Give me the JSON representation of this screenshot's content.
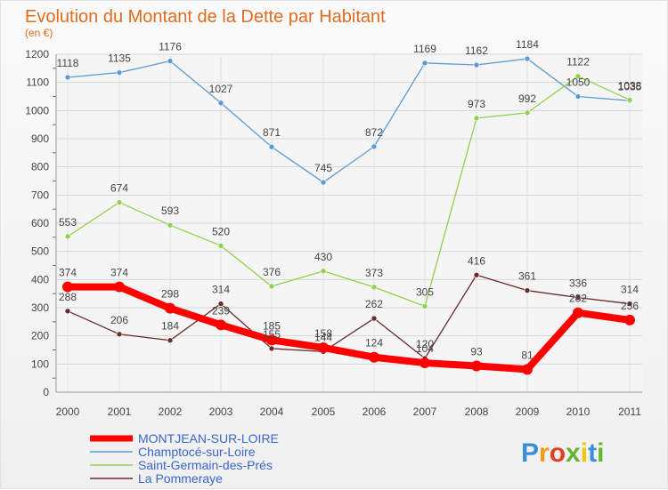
{
  "chart_data": {
    "type": "line",
    "title": "Evolution du Montant de la Dette par Habitant",
    "subtitle": "(en €)",
    "xlabel": "",
    "ylabel": "",
    "x": [
      "2000",
      "2001",
      "2002",
      "2003",
      "2004",
      "2005",
      "2006",
      "2007",
      "2008",
      "2009",
      "2010",
      "2011"
    ],
    "ylim": [
      0,
      1200
    ],
    "yticks": [
      0,
      100,
      200,
      300,
      400,
      500,
      600,
      700,
      800,
      900,
      1000,
      1100,
      1200
    ],
    "grid": "horizontal",
    "legend_position": "bottom-left",
    "series": [
      {
        "name": "MONTJEAN-SUR-LOIRE",
        "color": "#ff0000",
        "values": [
          374,
          374,
          298,
          239,
          185,
          158,
          124,
          104,
          93,
          81,
          282,
          256
        ]
      },
      {
        "name": "Champtocé-sur-Loire",
        "color": "#5b9bd5",
        "values": [
          1118,
          1135,
          1176,
          1027,
          871,
          745,
          872,
          1169,
          1162,
          1184,
          1050,
          1035
        ]
      },
      {
        "name": "Saint-Germain-des-Prés",
        "color": "#92d050",
        "values": [
          553,
          674,
          593,
          520,
          376,
          430,
          373,
          305,
          973,
          992,
          1122,
          1038
        ]
      },
      {
        "name": "La Pommeraye",
        "color": "#6b2b2b",
        "values": [
          288,
          206,
          184,
          314,
          155,
          144,
          262,
          120,
          416,
          361,
          336,
          314
        ]
      }
    ]
  },
  "brand": {
    "text": "Proxiti",
    "letter_colors": [
      "#3a8fd8",
      "#f39c12",
      "#e2401c",
      "#66b32e",
      "#f1c40f",
      "#3a8fd8",
      "#66b32e"
    ]
  }
}
